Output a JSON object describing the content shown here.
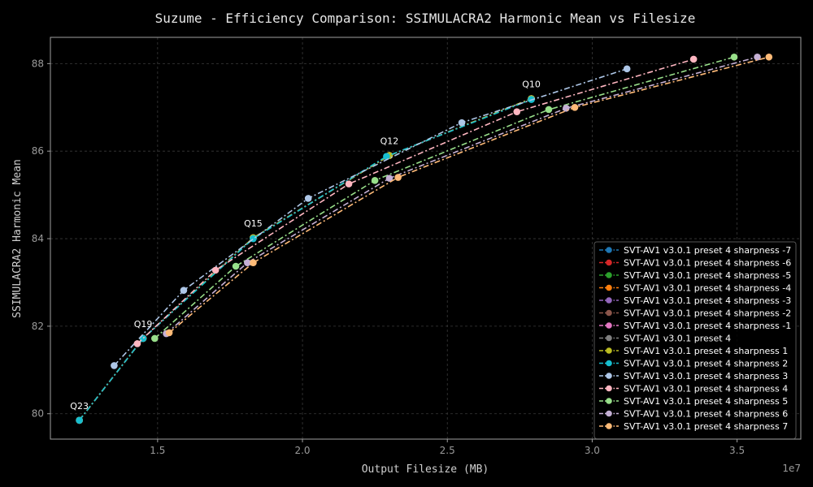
{
  "chart_data": {
    "type": "line",
    "title": "Suzume - Efficiency Comparison: SSIMULACRA2 Harmonic Mean vs Filesize",
    "xlabel": "Output Filesize (MB)",
    "ylabel": "SSIMULACRA2 Harmonic Mean",
    "x_offset_label": "1e7",
    "xlim": [
      11300000,
      37200000
    ],
    "ylim": [
      79.42,
      88.6
    ],
    "xticks": [
      15000000,
      20000000,
      25000000,
      30000000,
      35000000
    ],
    "xtick_labels": [
      "1.5",
      "2.0",
      "2.5",
      "3.0",
      "3.5"
    ],
    "yticks": [
      80,
      82,
      84,
      86,
      88
    ],
    "ytick_labels": [
      "80",
      "82",
      "84",
      "86",
      "88"
    ],
    "grid": true,
    "legend_position": "lower-right",
    "annotations": [
      {
        "text": "Q23",
        "x": 12300000,
        "y": 79.85
      },
      {
        "text": "Q19",
        "x": 14500000,
        "y": 81.72
      },
      {
        "text": "Q15",
        "x": 18300000,
        "y": 84.02
      },
      {
        "text": "Q12",
        "x": 23000000,
        "y": 85.9
      },
      {
        "text": "Q10",
        "x": 27900000,
        "y": 87.2
      }
    ],
    "series": [
      {
        "name": "SVT-AV1 v3.0.1 preset 4 sharpness -7",
        "color": "#1f77b4",
        "x": [
          12300000,
          14500000,
          18300000,
          23000000,
          27900000
        ],
        "y": [
          79.85,
          81.72,
          84.02,
          85.9,
          87.2
        ]
      },
      {
        "name": "SVT-AV1 v3.0.1 preset 4 sharpness -6",
        "color": "#d62728",
        "x": [
          12300000,
          14500000,
          18300000,
          23000000,
          27900000
        ],
        "y": [
          79.85,
          81.72,
          84.02,
          85.9,
          87.2
        ]
      },
      {
        "name": "SVT-AV1 v3.0.1 preset 4 sharpness -5",
        "color": "#2ca02c",
        "x": [
          12300000,
          14500000,
          18300000,
          23000000,
          27900000
        ],
        "y": [
          79.85,
          81.72,
          84.02,
          85.9,
          87.2
        ]
      },
      {
        "name": "SVT-AV1 v3.0.1 preset 4 sharpness -4",
        "color": "#ff7f0e",
        "x": [
          12300000,
          14500000,
          18300000,
          23000000,
          27900000
        ],
        "y": [
          79.85,
          81.72,
          84.02,
          85.9,
          87.2
        ]
      },
      {
        "name": "SVT-AV1 v3.0.1 preset 4 sharpness -3",
        "color": "#9467bd",
        "x": [
          12300000,
          14500000,
          18300000,
          23000000,
          27900000
        ],
        "y": [
          79.85,
          81.72,
          84.02,
          85.9,
          87.2
        ]
      },
      {
        "name": "SVT-AV1 v3.0.1 preset 4 sharpness -2",
        "color": "#8c564b",
        "x": [
          12300000,
          14500000,
          18300000,
          23000000,
          27900000
        ],
        "y": [
          79.85,
          81.72,
          84.02,
          85.9,
          87.2
        ]
      },
      {
        "name": "SVT-AV1 v3.0.1 preset 4 sharpness -1",
        "color": "#e377c2",
        "x": [
          12300000,
          14500000,
          18300000,
          23000000,
          27900000
        ],
        "y": [
          79.85,
          81.72,
          84.02,
          85.9,
          87.2
        ]
      },
      {
        "name": "SVT-AV1 v3.0.1 preset 4",
        "color": "#7f7f7f",
        "x": [
          12300000,
          14500000,
          18300000,
          23000000,
          27900000
        ],
        "y": [
          79.85,
          81.72,
          84.02,
          85.9,
          87.2
        ]
      },
      {
        "name": "SVT-AV1 v3.0.1 preset 4 sharpness 1",
        "color": "#bcbd22",
        "x": [
          12300000,
          14500000,
          18300000,
          23000000,
          27900000
        ],
        "y": [
          79.85,
          81.72,
          84.02,
          85.9,
          87.2
        ]
      },
      {
        "name": "SVT-AV1 v3.0.1 preset 4 sharpness 2",
        "color": "#17becf",
        "x": [
          12300000,
          14500000,
          18300000,
          22900000,
          27900000
        ],
        "y": [
          79.85,
          81.72,
          84.0,
          85.88,
          87.18
        ]
      },
      {
        "name": "SVT-AV1 v3.0.1 preset 4 sharpness 3",
        "color": "#aec7e8",
        "x": [
          13500000,
          15900000,
          20200000,
          25500000,
          31200000
        ],
        "y": [
          81.1,
          82.82,
          84.92,
          86.65,
          87.88
        ]
      },
      {
        "name": "SVT-AV1 v3.0.1 preset 4 sharpness 4",
        "color": "#ffb6c1",
        "x": [
          14300000,
          17000000,
          21600000,
          27400000,
          33500000
        ],
        "y": [
          81.6,
          83.28,
          85.25,
          86.9,
          88.1
        ]
      },
      {
        "name": "SVT-AV1 v3.0.1 preset 4 sharpness 5",
        "color": "#98df8a",
        "x": [
          14900000,
          17700000,
          22500000,
          28500000,
          34900000
        ],
        "y": [
          81.72,
          83.37,
          85.33,
          86.95,
          88.15
        ]
      },
      {
        "name": "SVT-AV1 v3.0.1 preset 4 sharpness 6",
        "color": "#c5b0d5",
        "x": [
          15300000,
          18100000,
          23000000,
          29100000,
          35700000
        ],
        "y": [
          81.83,
          83.45,
          85.38,
          86.98,
          88.15
        ]
      },
      {
        "name": "SVT-AV1 v3.0.1 preset 4 sharpness 7",
        "color": "#ffbb78",
        "x": [
          15400000,
          18300000,
          23300000,
          29400000,
          36100000
        ],
        "y": [
          81.85,
          83.45,
          85.4,
          87.0,
          88.15
        ]
      }
    ]
  }
}
